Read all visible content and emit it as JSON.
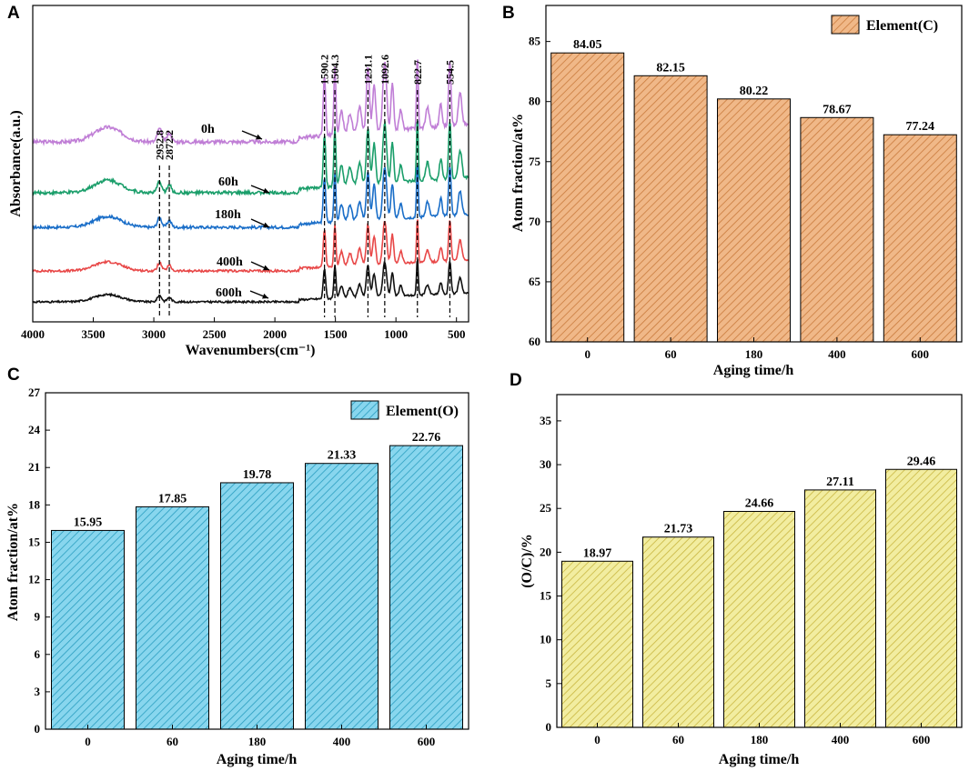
{
  "chart_data": [
    {
      "panel": "A",
      "type": "line",
      "title": "",
      "xlabel": "Wavenumbers(cm⁻¹)",
      "ylabel": "Absorbance(a.u.)",
      "xlim": [
        4000,
        400
      ],
      "x_ticks": [
        "4000",
        "3500",
        "3000",
        "2500",
        "2000",
        "1500",
        "1000",
        "500"
      ],
      "peak_labels": [
        "2952.8",
        "2872.2",
        "1590.2",
        "1504.3",
        "1231.1",
        "1092.6",
        "822.7",
        "554.5"
      ],
      "peaks": [
        2952.8,
        2872.2,
        1590.2,
        1504.3,
        1231.1,
        1092.6,
        822.7,
        554.5
      ],
      "series": [
        {
          "name": "0h",
          "color": "#c07ed6"
        },
        {
          "name": "60h",
          "color": "#1a9e6a"
        },
        {
          "name": "180h",
          "color": "#1a6ec8"
        },
        {
          "name": "400h",
          "color": "#e84848"
        },
        {
          "name": "600h",
          "color": "#111111"
        }
      ]
    },
    {
      "panel": "B",
      "type": "bar",
      "title": "",
      "xlabel": "Aging time/h",
      "ylabel": "Atom fraction/at%",
      "legend": "Element(C)",
      "categories": [
        "0",
        "60",
        "180",
        "400",
        "600"
      ],
      "values": [
        84.05,
        82.15,
        80.22,
        78.67,
        77.24
      ],
      "value_labels": [
        "84.05",
        "82.15",
        "80.22",
        "78.67",
        "77.24"
      ],
      "ylim": [
        60,
        88
      ],
      "y_ticks": [
        "60",
        "65",
        "70",
        "75",
        "80",
        "85"
      ],
      "color": "#f0b888",
      "hatch_color": "#c97a3c"
    },
    {
      "panel": "C",
      "type": "bar",
      "title": "",
      "xlabel": "Aging time/h",
      "ylabel": "Atom fraction/at%",
      "legend": "Element(O)",
      "categories": [
        "0",
        "60",
        "180",
        "400",
        "600"
      ],
      "values": [
        15.95,
        17.85,
        19.78,
        21.33,
        22.76
      ],
      "value_labels": [
        "15.95",
        "17.85",
        "19.78",
        "21.33",
        "22.76"
      ],
      "ylim": [
        0,
        27
      ],
      "y_ticks": [
        "0",
        "3",
        "6",
        "9",
        "12",
        "15",
        "18",
        "21",
        "24",
        "27"
      ],
      "color": "#88d6ee",
      "hatch_color": "#2a9ec0"
    },
    {
      "panel": "D",
      "type": "bar",
      "title": "",
      "xlabel": "Aging time/h",
      "ylabel": "(O/C)/%",
      "legend": "",
      "categories": [
        "0",
        "60",
        "180",
        "400",
        "600"
      ],
      "values": [
        18.97,
        21.73,
        24.66,
        27.11,
        29.46
      ],
      "value_labels": [
        "18.97",
        "21.73",
        "24.66",
        "27.11",
        "29.46"
      ],
      "ylim": [
        0,
        38
      ],
      "y_ticks": [
        "0",
        "5",
        "10",
        "15",
        "20",
        "25",
        "30",
        "35"
      ],
      "color": "#f2eda0",
      "hatch_color": "#c9b640"
    }
  ]
}
